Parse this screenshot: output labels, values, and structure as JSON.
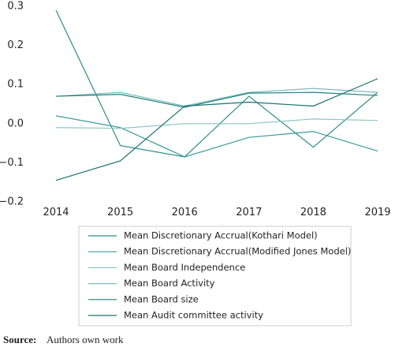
{
  "chart_data": {
    "type": "line",
    "categories": [
      "2014",
      "2015",
      "2016",
      "2017",
      "2018",
      "2019"
    ],
    "series": [
      {
        "name": "Mean Discretionary Accrual(Kothari Model)",
        "color": "#2e8b8b",
        "values": [
          0.29,
          -0.056,
          -0.085,
          0.07,
          -0.06,
          0.08
        ]
      },
      {
        "name": "Mean Discretionary Accrual(Modified Jones Model)",
        "color": "#3a9a9a",
        "values": [
          0.02,
          -0.01,
          -0.085,
          -0.035,
          -0.02,
          -0.07
        ]
      },
      {
        "name": "Mean Board Independence",
        "color": "#8cc4c4",
        "values": [
          -0.01,
          -0.012,
          0.0,
          0.0,
          0.012,
          0.008
        ]
      },
      {
        "name": "Mean Board Activity",
        "color": "#7dbcbc",
        "values": [
          0.07,
          0.08,
          0.045,
          0.08,
          0.09,
          0.08
        ]
      },
      {
        "name": "Mean Board size",
        "color": "#217f80",
        "values": [
          0.07,
          0.075,
          0.042,
          0.078,
          0.08,
          0.072
        ]
      },
      {
        "name": "Mean Audit committee activity",
        "color": "#1a7070",
        "values": [
          -0.145,
          -0.095,
          0.045,
          0.055,
          0.045,
          0.115
        ]
      }
    ],
    "ylim": [
      -0.2,
      0.3
    ],
    "yticks": [
      {
        "value": -0.2,
        "label": "−0.2"
      },
      {
        "value": -0.1,
        "label": "−0.1"
      },
      {
        "value": 0,
        "label": "0.0"
      },
      0.1,
      0.2,
      0.3
    ],
    "grid": false,
    "source_label": "Source:",
    "source_text": "Authors own work"
  }
}
